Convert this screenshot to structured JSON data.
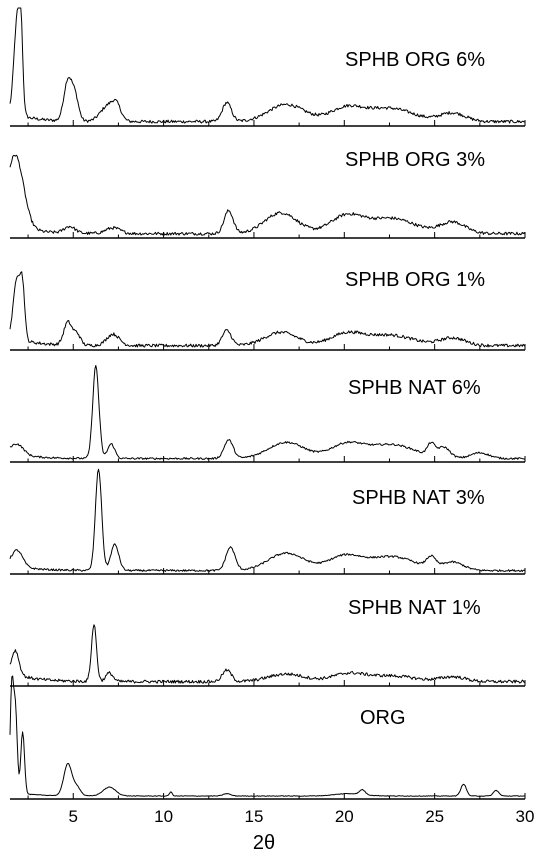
{
  "chart_data": {
    "type": "line",
    "xlabel": "2θ",
    "xlim": [
      1.5,
      30
    ],
    "xticks": [
      5,
      10,
      15,
      20,
      25,
      30
    ],
    "y_scale": "stacked arbitrary intensity (no y-axis shown)",
    "grid": false,
    "series": [
      {
        "name": "SPHB ORG 6%",
        "peaks": [
          {
            "x": 1.9,
            "y": 100,
            "w": 0.18
          },
          {
            "x": 2.1,
            "y": 70,
            "w": 0.1
          },
          {
            "x": 4.7,
            "y": 42,
            "w": 0.22
          },
          {
            "x": 5.1,
            "y": 25,
            "w": 0.2
          },
          {
            "x": 6.9,
            "y": 16,
            "w": 0.4
          },
          {
            "x": 7.4,
            "y": 14,
            "w": 0.25
          },
          {
            "x": 13.5,
            "y": 20,
            "w": 0.25
          },
          {
            "x": 16.8,
            "y": 18,
            "w": 1.0
          },
          {
            "x": 20.1,
            "y": 14,
            "w": 0.9
          },
          {
            "x": 22.5,
            "y": 14,
            "w": 1.3
          },
          {
            "x": 26.0,
            "y": 9,
            "w": 0.7
          }
        ]
      },
      {
        "name": "SPHB ORG 3%",
        "peaks": [
          {
            "x": 1.8,
            "y": 75,
            "w": 0.45
          },
          {
            "x": 4.8,
            "y": 7,
            "w": 0.3
          },
          {
            "x": 7.2,
            "y": 6,
            "w": 0.4
          },
          {
            "x": 13.6,
            "y": 24,
            "w": 0.25
          },
          {
            "x": 16.5,
            "y": 22,
            "w": 0.9
          },
          {
            "x": 20.1,
            "y": 18,
            "w": 0.9
          },
          {
            "x": 22.6,
            "y": 16,
            "w": 1.3
          },
          {
            "x": 26.0,
            "y": 12,
            "w": 0.7
          }
        ]
      },
      {
        "name": "SPHB ORG 1%",
        "peaks": [
          {
            "x": 1.9,
            "y": 65,
            "w": 0.2
          },
          {
            "x": 2.2,
            "y": 45,
            "w": 0.12
          },
          {
            "x": 4.7,
            "y": 24,
            "w": 0.22
          },
          {
            "x": 5.2,
            "y": 12,
            "w": 0.2
          },
          {
            "x": 7.2,
            "y": 12,
            "w": 0.35
          },
          {
            "x": 13.5,
            "y": 16,
            "w": 0.25
          },
          {
            "x": 16.5,
            "y": 14,
            "w": 0.9
          },
          {
            "x": 20.1,
            "y": 12,
            "w": 0.9
          },
          {
            "x": 22.5,
            "y": 11,
            "w": 1.3
          },
          {
            "x": 26.0,
            "y": 8,
            "w": 0.7
          }
        ]
      },
      {
        "name": "SPHB NAT 6%",
        "peaks": [
          {
            "x": 1.9,
            "y": 18,
            "w": 0.35
          },
          {
            "x": 6.25,
            "y": 160,
            "w": 0.17
          },
          {
            "x": 7.1,
            "y": 25,
            "w": 0.2
          },
          {
            "x": 13.6,
            "y": 32,
            "w": 0.25
          },
          {
            "x": 16.8,
            "y": 28,
            "w": 1.0
          },
          {
            "x": 20.1,
            "y": 24,
            "w": 0.9
          },
          {
            "x": 22.6,
            "y": 24,
            "w": 1.3
          },
          {
            "x": 24.8,
            "y": 20,
            "w": 0.2
          },
          {
            "x": 25.5,
            "y": 18,
            "w": 0.35
          },
          {
            "x": 27.5,
            "y": 10,
            "w": 0.5
          }
        ]
      },
      {
        "name": "SPHB NAT 3%",
        "peaks": [
          {
            "x": 1.9,
            "y": 28,
            "w": 0.3
          },
          {
            "x": 6.4,
            "y": 175,
            "w": 0.17
          },
          {
            "x": 7.3,
            "y": 45,
            "w": 0.22
          },
          {
            "x": 13.7,
            "y": 40,
            "w": 0.25
          },
          {
            "x": 16.8,
            "y": 30,
            "w": 1.0
          },
          {
            "x": 20.0,
            "y": 24,
            "w": 0.9
          },
          {
            "x": 22.6,
            "y": 24,
            "w": 1.3
          },
          {
            "x": 24.8,
            "y": 18,
            "w": 0.25
          },
          {
            "x": 26.0,
            "y": 14,
            "w": 0.6
          }
        ]
      },
      {
        "name": "SPHB NAT 1%",
        "peaks": [
          {
            "x": 1.8,
            "y": 25,
            "w": 0.2
          },
          {
            "x": 6.15,
            "y": 60,
            "w": 0.14
          },
          {
            "x": 7.0,
            "y": 9,
            "w": 0.2
          },
          {
            "x": 13.5,
            "y": 12,
            "w": 0.25
          },
          {
            "x": 16.8,
            "y": 8,
            "w": 1.0
          },
          {
            "x": 20.2,
            "y": 8,
            "w": 0.9
          },
          {
            "x": 22.6,
            "y": 6,
            "w": 1.3
          },
          {
            "x": 26.0,
            "y": 5,
            "w": 0.7
          }
        ]
      },
      {
        "name": "ORG",
        "peaks": [
          {
            "x": 1.6,
            "y": 260,
            "w": 0.09
          },
          {
            "x": 1.8,
            "y": 210,
            "w": 0.1
          },
          {
            "x": 2.2,
            "y": 155,
            "w": 0.1
          },
          {
            "x": 4.7,
            "y": 80,
            "w": 0.22
          },
          {
            "x": 5.2,
            "y": 22,
            "w": 0.2
          },
          {
            "x": 7.0,
            "y": 22,
            "w": 0.35
          },
          {
            "x": 10.4,
            "y": 10,
            "w": 0.08
          },
          {
            "x": 13.5,
            "y": 6,
            "w": 0.2
          },
          {
            "x": 20.3,
            "y": 6,
            "w": 0.8
          },
          {
            "x": 21.0,
            "y": 12,
            "w": 0.15
          },
          {
            "x": 26.6,
            "y": 30,
            "w": 0.15
          },
          {
            "x": 28.4,
            "y": 14,
            "w": 0.15
          }
        ]
      }
    ]
  }
}
